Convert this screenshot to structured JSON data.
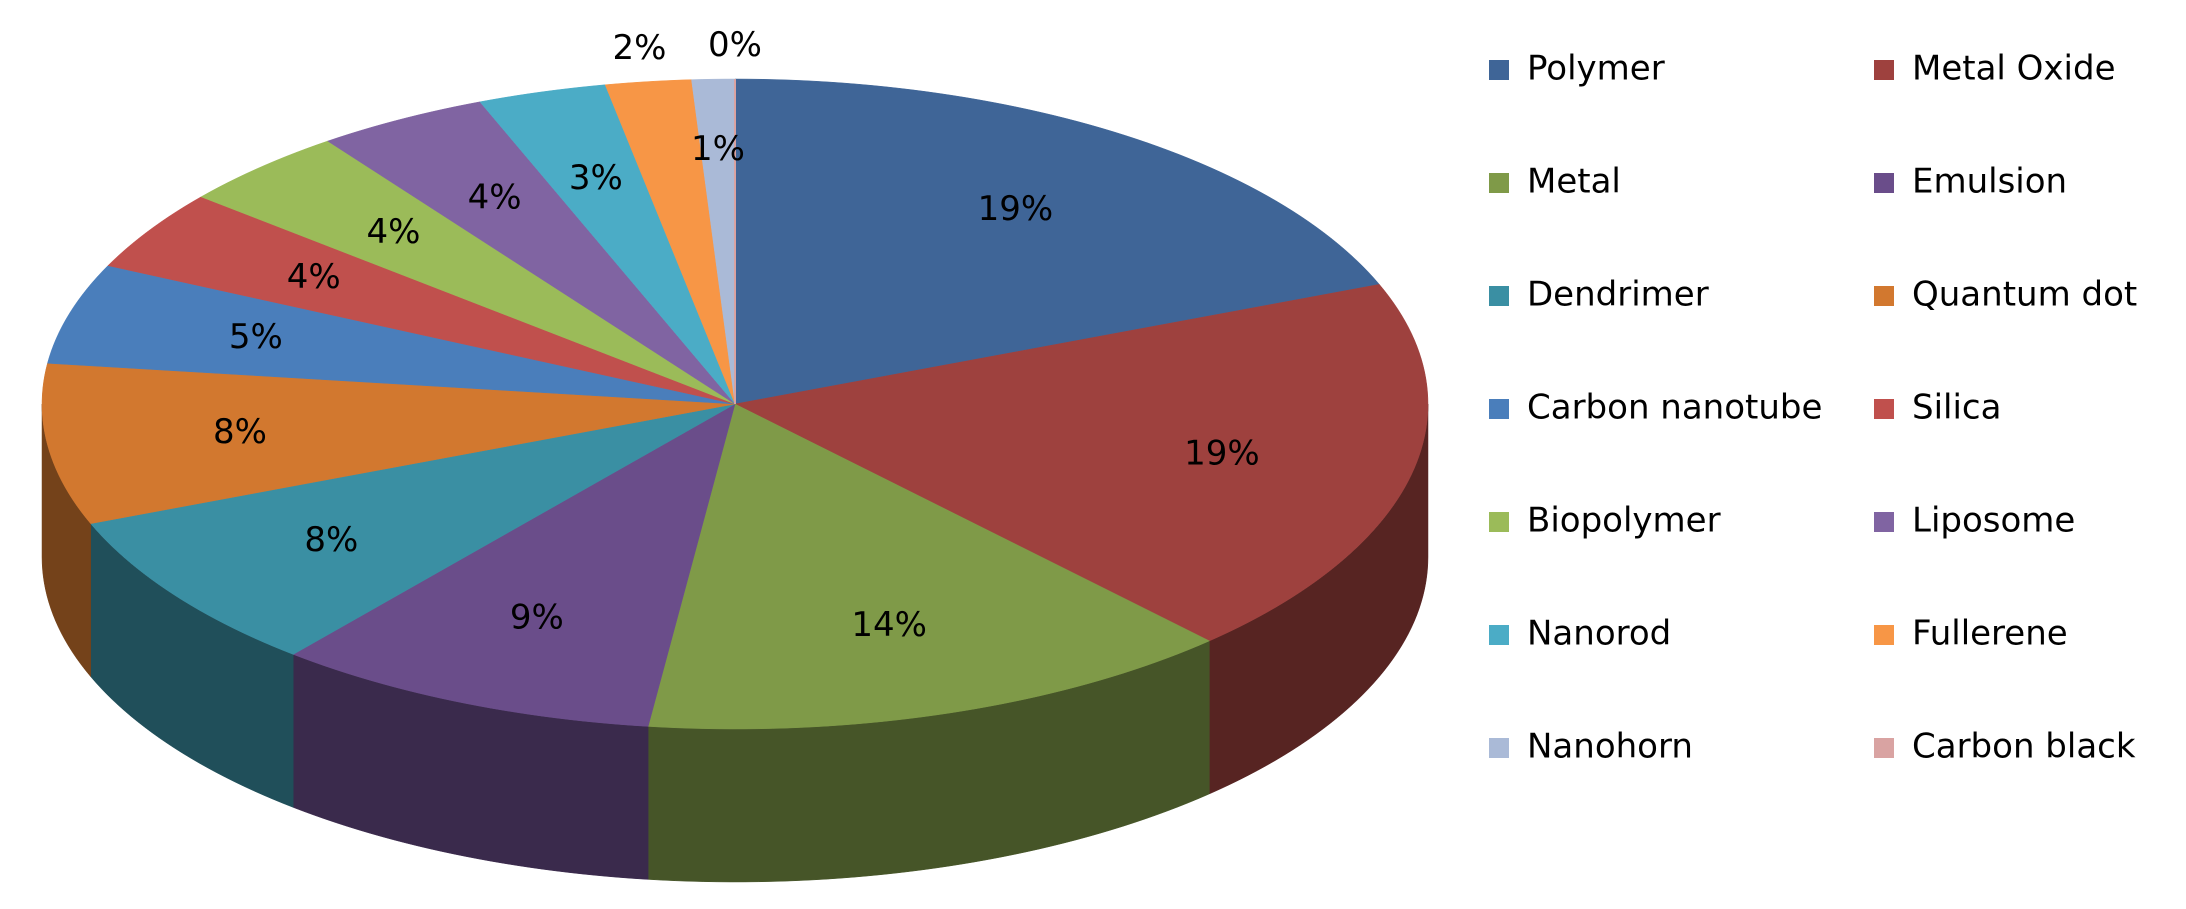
{
  "chart_data": {
    "type": "pie3d",
    "categories": [
      "Polymer",
      "Metal Oxide",
      "Metal",
      "Emulsion",
      "Dendrimer",
      "Quantum dot",
      "Carbon nanotube",
      "Silica",
      "Biopolymer",
      "Liposome",
      "Nanorod",
      "Fullerene",
      "Nanohorn",
      "Carbon black"
    ],
    "values": [
      19,
      19,
      14,
      9,
      8,
      8,
      5,
      4,
      4,
      4,
      3,
      2,
      1,
      0
    ],
    "value_labels": [
      "19%",
      "19%",
      "14%",
      "9%",
      "8%",
      "8%",
      "5%",
      "4%",
      "4%",
      "4%",
      "3%",
      "2%",
      "1%",
      "0%"
    ],
    "colors": [
      "#3f6597",
      "#9e413e",
      "#7f9a48",
      "#6a4d8a",
      "#3a8fa3",
      "#d2782f",
      "#4a7ebb",
      "#c0504d",
      "#9bbb59",
      "#8064a2",
      "#4bacc6",
      "#f79646",
      "#aabad7",
      "#d9a3a2"
    ],
    "legend": "right"
  }
}
